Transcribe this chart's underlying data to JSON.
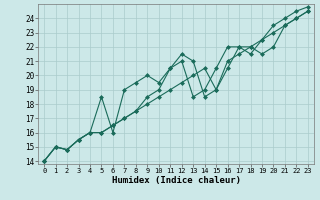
{
  "title": "",
  "xlabel": "Humidex (Indice chaleur)",
  "background_color": "#cce8e8",
  "grid_color": "#aacccc",
  "line_color": "#1a6b5a",
  "xlim": [
    -0.5,
    23.5
  ],
  "ylim": [
    13.8,
    25.0
  ],
  "xticks": [
    0,
    1,
    2,
    3,
    4,
    5,
    6,
    7,
    8,
    9,
    10,
    11,
    12,
    13,
    14,
    15,
    16,
    17,
    18,
    19,
    20,
    21,
    22,
    23
  ],
  "yticks": [
    14,
    15,
    16,
    17,
    18,
    19,
    20,
    21,
    22,
    23,
    24
  ],
  "line1_x": [
    0,
    1,
    2,
    3,
    4,
    5,
    6,
    7,
    8,
    9,
    10,
    11,
    12,
    13,
    14,
    15,
    16,
    17,
    18,
    19,
    20,
    21,
    22,
    23
  ],
  "line1_y": [
    14,
    15,
    14.8,
    15.5,
    16.0,
    18.5,
    16.0,
    19.0,
    19.5,
    20.0,
    19.5,
    20.5,
    21.5,
    21.0,
    18.5,
    19.0,
    20.5,
    22.0,
    22.0,
    21.5,
    22.0,
    23.5,
    24.0,
    24.5
  ],
  "line2_x": [
    0,
    1,
    2,
    3,
    4,
    5,
    6,
    7,
    8,
    9,
    10,
    11,
    12,
    13,
    14,
    15,
    16,
    17,
    18,
    19,
    20,
    21,
    22,
    23
  ],
  "line2_y": [
    14,
    15,
    14.8,
    15.5,
    16.0,
    16.0,
    16.5,
    17.0,
    17.5,
    18.0,
    18.5,
    19.0,
    19.5,
    20.0,
    20.5,
    19.0,
    21.0,
    21.5,
    22.0,
    22.5,
    23.0,
    23.5,
    24.0,
    24.5
  ],
  "line3_x": [
    0,
    1,
    2,
    3,
    4,
    5,
    6,
    7,
    8,
    9,
    10,
    11,
    12,
    13,
    14,
    15,
    16,
    17,
    18,
    19,
    20,
    21,
    22,
    23
  ],
  "line3_y": [
    14,
    15,
    14.8,
    15.5,
    16.0,
    16.0,
    16.5,
    17.0,
    17.5,
    18.5,
    19.0,
    20.5,
    21.0,
    18.5,
    19.0,
    20.5,
    22.0,
    22.0,
    21.5,
    22.5,
    23.5,
    24.0,
    24.5,
    24.8
  ]
}
